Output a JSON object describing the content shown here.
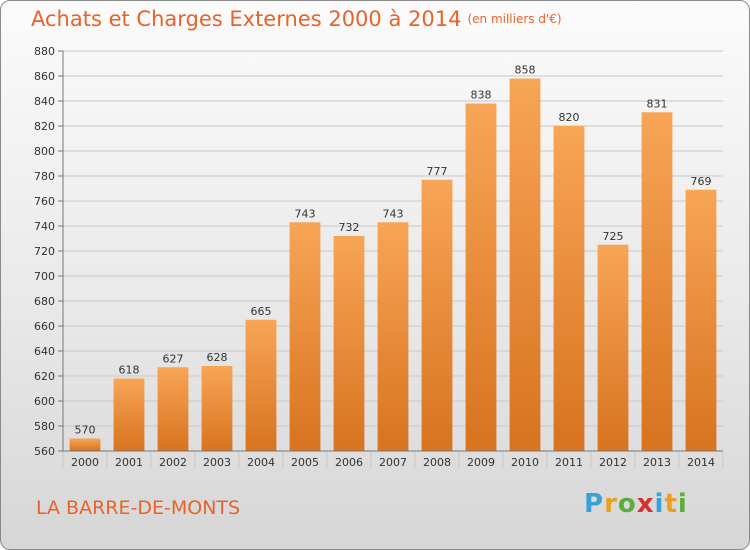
{
  "header": {
    "title": "Achats et Charges Externes 2000 à 2014",
    "unit": "(en milliers d'€)"
  },
  "footer": {
    "commune": "LA BARRE-DE-MONTS",
    "logo_letters": [
      "P",
      "r",
      "o",
      "x",
      "i",
      "t",
      "i"
    ],
    "logo_colors": [
      "#3aa0d8",
      "#e8a020",
      "#5aae3a",
      "#d8302a",
      "#3aa0d8",
      "#e8a020",
      "#5aae3a"
    ]
  },
  "colors": {
    "accent": "#e8632a",
    "bar_light": "#f7a556",
    "bar_dark": "#d8731f"
  },
  "chart_data": {
    "type": "bar",
    "categories": [
      "2000",
      "2001",
      "2002",
      "2003",
      "2004",
      "2005",
      "2006",
      "2007",
      "2008",
      "2009",
      "2010",
      "2011",
      "2012",
      "2013",
      "2014"
    ],
    "values": [
      570,
      618,
      627,
      628,
      665,
      743,
      732,
      743,
      777,
      838,
      858,
      820,
      725,
      831,
      769
    ],
    "title": "Achats et Charges Externes 2000 à 2014",
    "xlabel": "",
    "ylabel": "",
    "ylim": [
      560,
      880
    ],
    "yticks": [
      560,
      580,
      600,
      620,
      640,
      660,
      680,
      700,
      720,
      740,
      760,
      780,
      800,
      820,
      840,
      860,
      880
    ],
    "grid": true
  }
}
